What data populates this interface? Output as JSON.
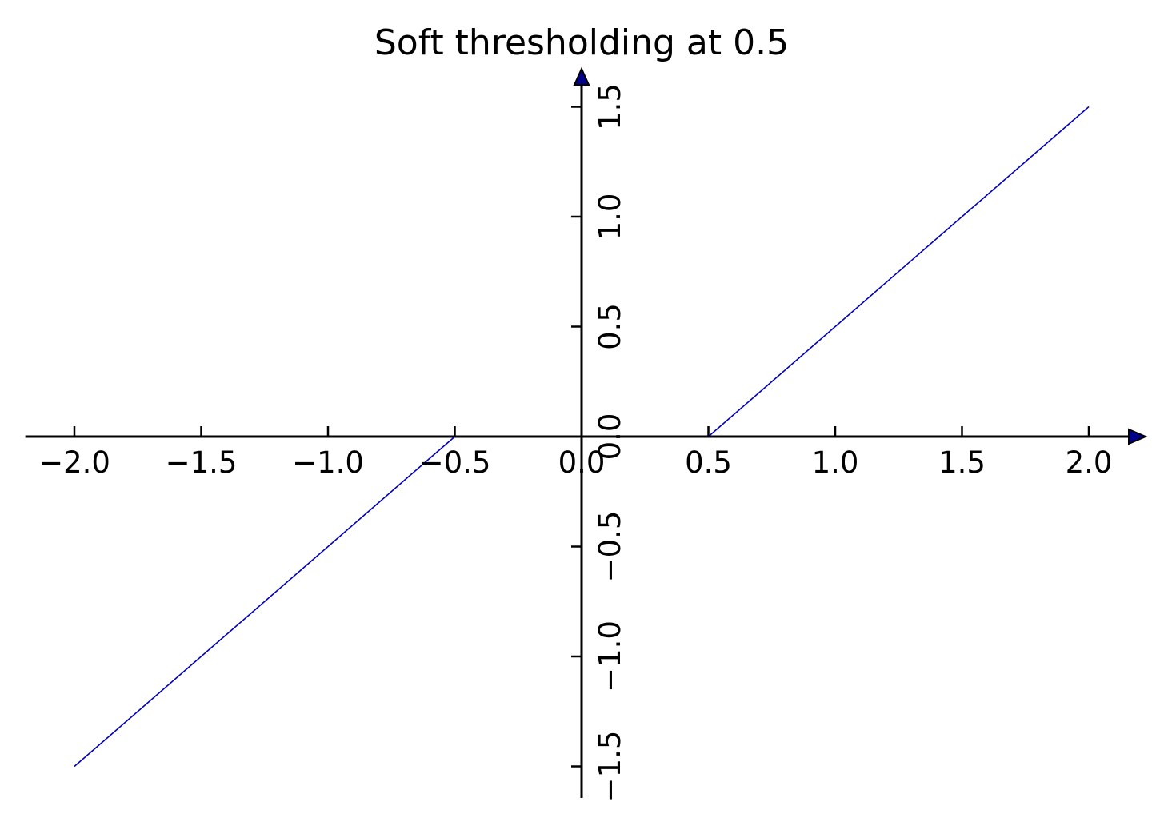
{
  "chart_data": {
    "type": "line",
    "title": "Soft thresholding at 0.5",
    "xlabel": "",
    "ylabel": "",
    "xlim": [
      -2.2,
      2.2
    ],
    "ylim": [
      -1.65,
      1.65
    ],
    "x_ticks": [
      -2.0,
      -1.5,
      -1.0,
      -0.5,
      0.0,
      0.5,
      1.0,
      1.5,
      2.0
    ],
    "x_tick_labels": [
      "−2.0",
      "−1.5",
      "−1.0",
      "−0.5",
      "0.0",
      "0.5",
      "1.0",
      "1.5",
      "2.0"
    ],
    "y_ticks": [
      -1.5,
      -1.0,
      -0.5,
      0.0,
      0.5,
      1.0,
      1.5
    ],
    "y_tick_labels": [
      "−1.5",
      "−1.0",
      "−0.5",
      "0.0",
      "0.5",
      "1.0",
      "1.5"
    ],
    "grid": false,
    "axes_style": "centered-spines-with-arrows",
    "series": [
      {
        "color": "#0000bb",
        "x": [
          -2.0,
          -0.5
        ],
        "y": [
          -1.5,
          0.0
        ]
      },
      {
        "color": "#0000bb",
        "x": [
          0.5,
          2.0
        ],
        "y": [
          0.0,
          1.5
        ]
      }
    ],
    "axis_color": "#000000"
  }
}
